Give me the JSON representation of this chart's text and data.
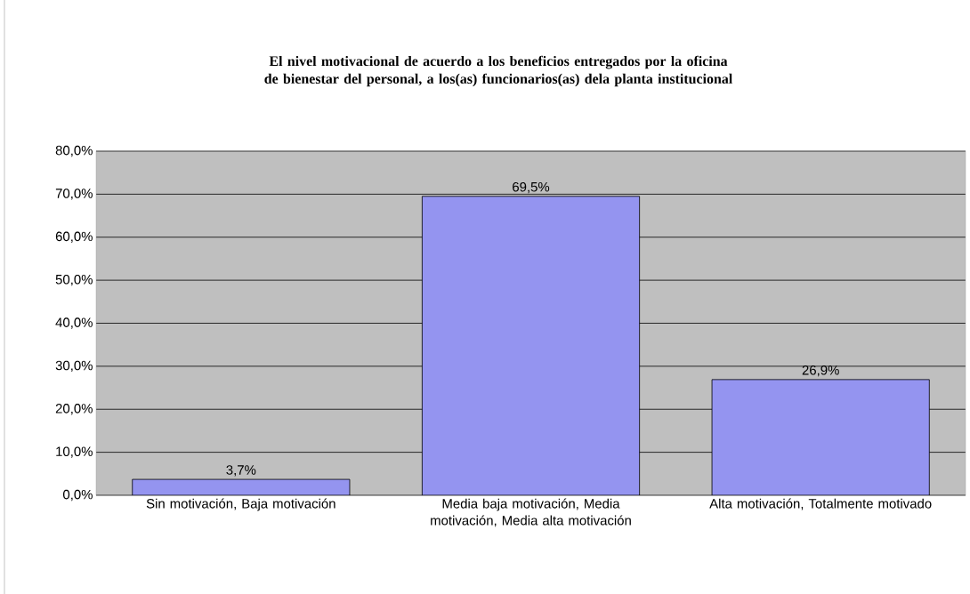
{
  "chart_data": {
    "type": "bar",
    "title": "El nivel motivacional de acuerdo  a los beneficios entregados por la oficina de bienestar del personal, a los(as) funcionarios(as) dela planta institucional",
    "categories": [
      "Sin motivación, Baja motivación",
      "Media baja motivación, Media motivación, Media alta motivación",
      "Alta motivación, Totalmente motivado"
    ],
    "values": [
      3.7,
      69.5,
      26.9
    ],
    "value_labels": [
      "3,7%",
      "69,5%",
      "26,9%"
    ],
    "color": "#9494f0",
    "ylim": [
      0,
      80
    ],
    "yticks": [
      {
        "value": 0,
        "label": "0,0%"
      },
      {
        "value": 10,
        "label": "10,0%"
      },
      {
        "value": 20,
        "label": "20,0%"
      },
      {
        "value": 30,
        "label": "30,0%"
      },
      {
        "value": 40,
        "label": "40,0%"
      },
      {
        "value": 50,
        "label": "50,0%"
      },
      {
        "value": 60,
        "label": "60,0%"
      },
      {
        "value": 70,
        "label": "70,0%"
      },
      {
        "value": 80,
        "label": "80,0%"
      }
    ],
    "grid": "y"
  }
}
